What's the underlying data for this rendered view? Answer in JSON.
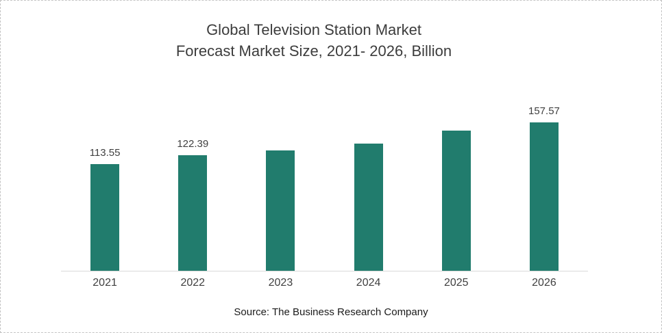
{
  "chart_data": {
    "type": "bar",
    "title_lines": {
      "line1": "Global Television Station Market",
      "line2": "Forecast Market Size, 2021- 2026, Billion"
    },
    "categories": [
      "2021",
      "2022",
      "2023",
      "2024",
      "2025",
      "2026"
    ],
    "values": [
      113.55,
      122.39,
      128.0,
      135.0,
      148.5,
      157.57
    ],
    "data_labels": [
      "113.55",
      "122.39",
      "",
      "",
      "",
      "157.57"
    ],
    "ylim": [
      0,
      185
    ],
    "grid": false,
    "legend": "none",
    "bar_color": "#217C6D",
    "axis_line_color": "#D9D9D9",
    "source": "Source: The Business Research Company"
  }
}
